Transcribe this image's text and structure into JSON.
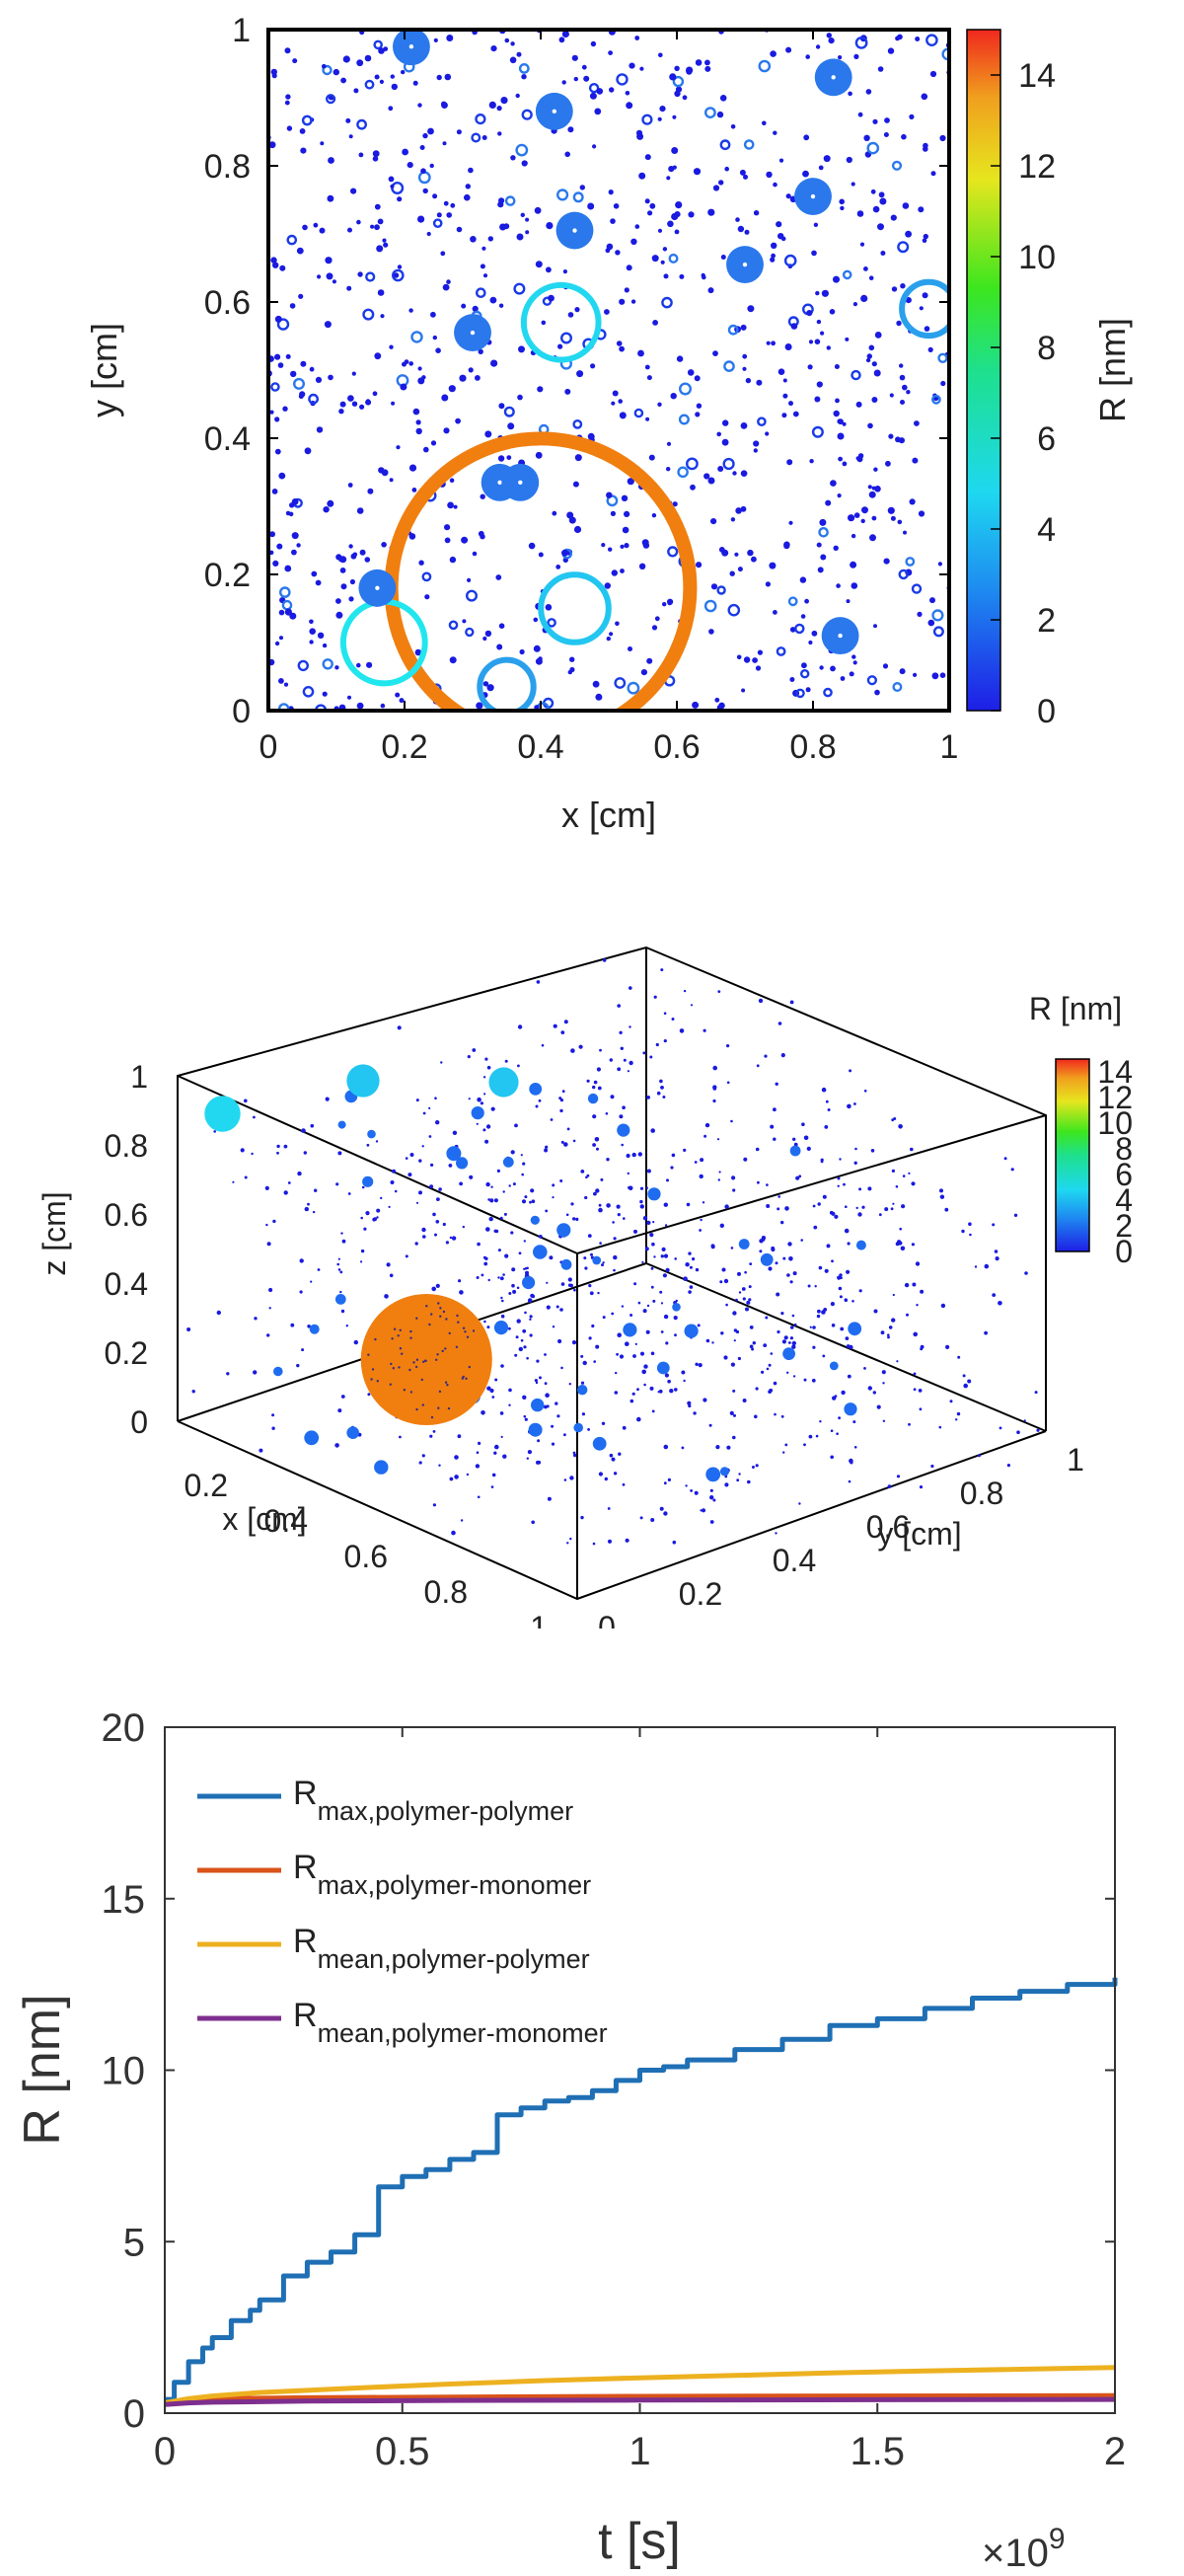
{
  "chart_data": [
    {
      "type": "scatter",
      "title": "",
      "xlabel": "x [cm]",
      "ylabel": "y [cm]",
      "xlim": [
        0,
        1
      ],
      "ylim": [
        0,
        1
      ],
      "xticks": [
        "0",
        "0.2",
        "0.4",
        "0.6",
        "0.8",
        "1"
      ],
      "yticks": [
        "0",
        "0.2",
        "0.4",
        "0.6",
        "0.8",
        "1"
      ],
      "colorbar": {
        "label": "R [nm]",
        "range": [
          0,
          15
        ],
        "ticks": [
          "0",
          "2",
          "4",
          "6",
          "8",
          "10",
          "12",
          "14"
        ]
      },
      "large_particles": [
        {
          "x": 0.4,
          "y": 0.18,
          "r": 12.8,
          "color": "#f07f10"
        },
        {
          "x": 0.17,
          "y": 0.1,
          "r": 3.5,
          "color": "#22e6ee"
        },
        {
          "x": 0.43,
          "y": 0.57,
          "r": 3.2,
          "color": "#22d8f0"
        },
        {
          "x": 0.45,
          "y": 0.15,
          "r": 2.9,
          "color": "#22c6f0"
        },
        {
          "x": 0.97,
          "y": 0.59,
          "r": 2.3,
          "color": "#2aa0ec"
        },
        {
          "x": 0.35,
          "y": 0.035,
          "r": 2.3,
          "color": "#2aa0ec"
        },
        {
          "x": 0.21,
          "y": 0.975,
          "r": 1.6,
          "color": "#2a78ec"
        },
        {
          "x": 0.42,
          "y": 0.88,
          "r": 1.6,
          "color": "#2a78ec"
        },
        {
          "x": 0.83,
          "y": 0.93,
          "r": 1.6,
          "color": "#2a78ec"
        },
        {
          "x": 0.8,
          "y": 0.755,
          "r": 1.6,
          "color": "#2a78ec"
        },
        {
          "x": 0.45,
          "y": 0.705,
          "r": 1.6,
          "color": "#2a78ec"
        },
        {
          "x": 0.7,
          "y": 0.655,
          "r": 1.6,
          "color": "#2a78ec"
        },
        {
          "x": 0.3,
          "y": 0.555,
          "r": 1.6,
          "color": "#2a78ec"
        },
        {
          "x": 0.34,
          "y": 0.335,
          "r": 1.6,
          "color": "#2a78ec"
        },
        {
          "x": 0.37,
          "y": 0.335,
          "r": 1.6,
          "color": "#2a78ec"
        },
        {
          "x": 0.16,
          "y": 0.18,
          "r": 1.6,
          "color": "#2a78ec"
        },
        {
          "x": 0.84,
          "y": 0.11,
          "r": 1.6,
          "color": "#2a78ec"
        }
      ]
    },
    {
      "type": "scatter3d",
      "title": "",
      "xlabel": "x [cm]",
      "ylabel": "y [cm]",
      "zlabel": "z [cm]",
      "xticks": [
        "0.2",
        "0.4",
        "0.6",
        "0.8",
        "1"
      ],
      "yticks": [
        "0",
        "0.2",
        "0.4",
        "0.6",
        "0.8",
        "1"
      ],
      "zticks": [
        "0",
        "0.2",
        "0.4",
        "0.6",
        "0.8",
        "1"
      ],
      "colorbar": {
        "label": "R [nm]",
        "range": [
          0,
          15
        ],
        "ticks": [
          "0",
          "2",
          "4",
          "6",
          "8",
          "10",
          "12",
          "14"
        ]
      },
      "large_particles": [
        {
          "x": 0.45,
          "y": 0.1,
          "z": 0.4,
          "r": 12.8,
          "color": "#f07f10"
        },
        {
          "x": 0.1,
          "y": 0.0,
          "z": 0.95,
          "r": 3.5,
          "color": "#22d8f0"
        },
        {
          "x": 0.1,
          "y": 0.3,
          "z": 0.9,
          "r": 3.2,
          "color": "#22c6f0"
        },
        {
          "x": 0.1,
          "y": 0.6,
          "z": 0.75,
          "r": 2.9,
          "color": "#22c6f0"
        }
      ]
    },
    {
      "type": "line",
      "title": "",
      "xlabel": "t [s]",
      "ylabel": "R [nm]",
      "xlim": [
        0,
        2
      ],
      "ylim": [
        0,
        20
      ],
      "x_multiplier": "×10",
      "x_multiplier_exp": "9",
      "xticks": [
        "0",
        "0.5",
        "1",
        "1.5",
        "2"
      ],
      "yticks": [
        "0",
        "5",
        "10",
        "15",
        "20"
      ],
      "series": [
        {
          "name": "R",
          "sub": "max,polymer-polymer",
          "color": "#1f6fb4",
          "x": [
            0,
            0.02,
            0.05,
            0.08,
            0.1,
            0.14,
            0.18,
            0.2,
            0.25,
            0.3,
            0.35,
            0.4,
            0.45,
            0.5,
            0.55,
            0.6,
            0.65,
            0.7,
            0.75,
            0.8,
            0.85,
            0.9,
            0.95,
            1.0,
            1.05,
            1.1,
            1.2,
            1.3,
            1.4,
            1.5,
            1.6,
            1.7,
            1.8,
            1.9,
            2.0
          ],
          "y": [
            0.4,
            0.9,
            1.5,
            1.9,
            2.2,
            2.7,
            3.0,
            3.3,
            4.0,
            4.4,
            4.7,
            5.2,
            6.6,
            6.9,
            7.1,
            7.4,
            7.6,
            8.7,
            8.9,
            9.1,
            9.2,
            9.4,
            9.7,
            10.0,
            10.1,
            10.3,
            10.6,
            10.9,
            11.3,
            11.5,
            11.8,
            12.1,
            12.3,
            12.5,
            12.7
          ]
        },
        {
          "name": "R",
          "sub": "max,polymer-monomer",
          "color": "#d95319",
          "x": [
            0,
            0.05,
            0.1,
            0.3,
            0.6,
            1.0,
            1.5,
            2.0
          ],
          "y": [
            0.3,
            0.38,
            0.42,
            0.45,
            0.47,
            0.49,
            0.5,
            0.51
          ]
        },
        {
          "name": "R",
          "sub": "mean,polymer-polymer",
          "color": "#edb120",
          "x": [
            0,
            0.05,
            0.1,
            0.2,
            0.4,
            0.6,
            0.8,
            1.0,
            1.2,
            1.4,
            1.6,
            1.8,
            2.0
          ],
          "y": [
            0.3,
            0.42,
            0.5,
            0.6,
            0.73,
            0.85,
            0.95,
            1.03,
            1.1,
            1.17,
            1.23,
            1.28,
            1.33
          ]
        },
        {
          "name": "R",
          "sub": "mean,polymer-monomer",
          "color": "#7e2f8e",
          "x": [
            0,
            0.05,
            0.1,
            0.3,
            0.6,
            1.0,
            1.5,
            2.0
          ],
          "y": [
            0.25,
            0.3,
            0.32,
            0.35,
            0.37,
            0.38,
            0.39,
            0.4
          ]
        }
      ]
    }
  ]
}
